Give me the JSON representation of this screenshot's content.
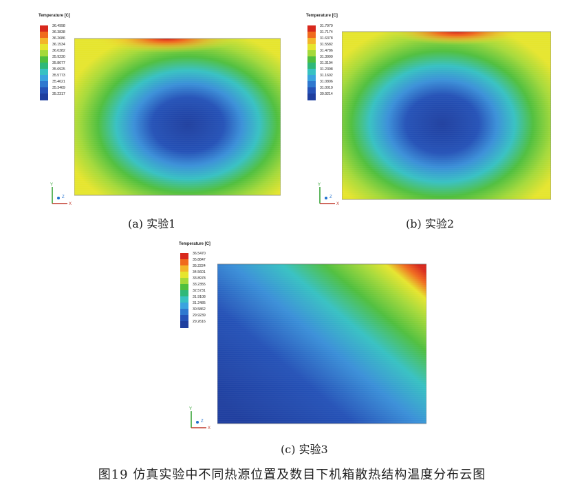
{
  "panels": [
    {
      "caption": "(a) 实验1",
      "legend_title": "Temperature [C]",
      "legend_values": [
        "36.4998",
        "36.3838",
        "36.2686",
        "36.1534",
        "36.0382",
        "35.9230",
        "35.8077",
        "35.6925",
        "35.5773",
        "35.4621",
        "35.3469",
        "35.2317"
      ],
      "axis_labels": {
        "y": "Y",
        "z": "Z",
        "x": "X"
      }
    },
    {
      "caption": "(b) 实验2",
      "legend_title": "Temperature [C]",
      "legend_values": [
        "31.7970",
        "31.7174",
        "31.6378",
        "31.5582",
        "31.4786",
        "31.3990",
        "31.3194",
        "31.2398",
        "31.1602",
        "31.0806",
        "31.0010",
        "30.9214"
      ],
      "axis_labels": {
        "y": "Y",
        "z": "Z",
        "x": "X"
      }
    },
    {
      "caption": "(c) 实验3",
      "legend_title": "Temperature [C]",
      "legend_values": [
        "36.5470",
        "35.8847",
        "35.2224",
        "34.5601",
        "33.8978",
        "33.2355",
        "32.5731",
        "31.9108",
        "31.2485",
        "30.5862",
        "29.9239",
        "29.2616"
      ],
      "axis_labels": {
        "y": "Y",
        "z": "Z",
        "x": "X"
      }
    }
  ],
  "figure_caption": "图19  仿真实验中不同热源位置及数目下机箱散热结构温度分布云图",
  "colors": {
    "scale": [
      "#d8281c",
      "#f06a1e",
      "#f3b52a",
      "#e6e52e",
      "#a4d93a",
      "#4fbf3e",
      "#2fb87a",
      "#37c1c2",
      "#3aa3df",
      "#2f78cf",
      "#2552b7",
      "#1f3f9f"
    ]
  }
}
